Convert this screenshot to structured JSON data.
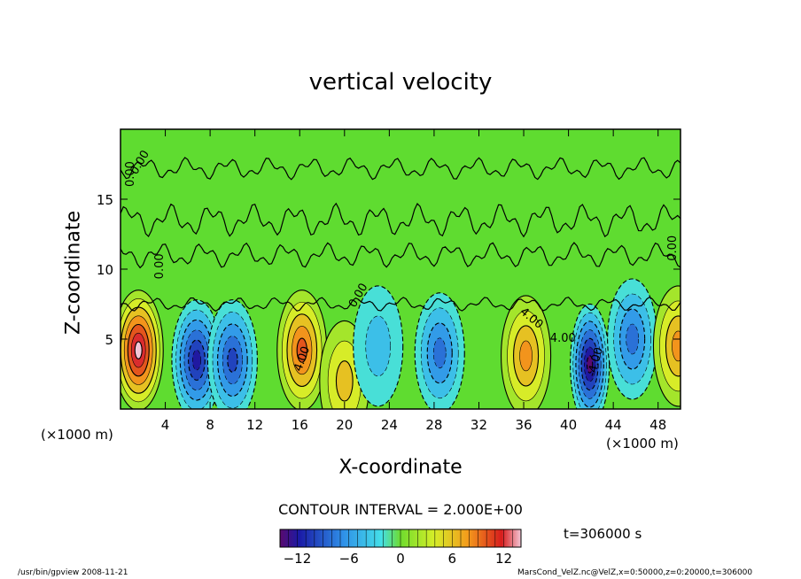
{
  "chart_data": {
    "type": "heatmap",
    "title": "vertical velocity",
    "xlabel": "X-coordinate",
    "ylabel": "Z-coordinate",
    "x_unit_label": "(×1000 m)",
    "xlim": [
      0,
      50
    ],
    "ylim": [
      0,
      20
    ],
    "x_ticks": [
      4,
      8,
      12,
      16,
      20,
      24,
      28,
      32,
      36,
      40,
      44,
      48
    ],
    "y_ticks": [
      5,
      10,
      15
    ],
    "contour_interval_text": "CONTOUR INTERVAL = 2.000E+00",
    "contour_labels": [
      "0.00",
      "0.00",
      "0.00",
      "0.00",
      "4.00",
      "4.00",
      "-4.00",
      "4.00",
      "0.00"
    ],
    "colorbar": {
      "min": -14,
      "max": 14,
      "ticks": [
        -12,
        -6,
        0,
        6,
        12
      ],
      "colors": {
        "min": "#5a0a6e",
        "neg_strong": "#1a1aa6",
        "neg_mid": "#2f8fe8",
        "neg_weak": "#44dfe8",
        "zero": "#6fdc2e",
        "pos_weak": "#d6ee28",
        "pos_mid": "#f39a1c",
        "pos_strong": "#d81d1d",
        "max": "#f3c6d6"
      }
    },
    "background_color": "#5fdc30",
    "features": [
      {
        "x": 1.6,
        "z": 4.2,
        "value": 14
      },
      {
        "x": 6.8,
        "z": 3.5,
        "value": -12
      },
      {
        "x": 10.0,
        "z": 3.5,
        "value": -10
      },
      {
        "x": 16.2,
        "z": 4.2,
        "value": 10
      },
      {
        "x": 20.0,
        "z": 2.0,
        "value": 6
      },
      {
        "x": 23.0,
        "z": 4.5,
        "value": -4
      },
      {
        "x": 28.5,
        "z": 4.0,
        "value": -8
      },
      {
        "x": 36.2,
        "z": 3.8,
        "value": 8
      },
      {
        "x": 41.9,
        "z": 3.2,
        "value": -14
      },
      {
        "x": 45.7,
        "z": 5.0,
        "value": -7
      },
      {
        "x": 49.8,
        "z": 4.5,
        "value": 8
      }
    ],
    "time_label": "t=306000 s",
    "footer_left": "/usr/bin/gpview   2008-11-21",
    "footer_right": "MarsCond_VelZ.nc@VelZ,x=0:50000,z=0:20000,t=306000"
  }
}
